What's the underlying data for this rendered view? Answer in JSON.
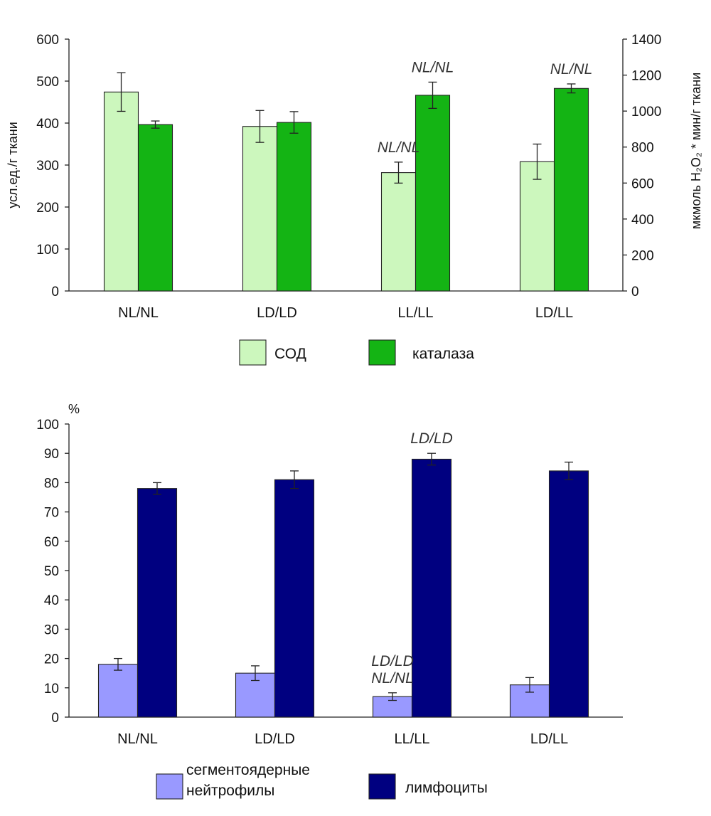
{
  "chart_data": [
    {
      "type": "bar",
      "categories": [
        "NL/NL",
        "LD/LD",
        "LL/LL",
        "LD/LL"
      ],
      "series": [
        {
          "name": "СОД",
          "axis": "left",
          "color": "#ccf7bd",
          "values": [
            474,
            392,
            282,
            308
          ],
          "errors": [
            46,
            38,
            25,
            42
          ]
        },
        {
          "name": "каталаза",
          "axis": "right",
          "color": "#14b414",
          "values": [
            925,
            937,
            1088,
            1126
          ],
          "errors": [
            20,
            60,
            73,
            25
          ]
        }
      ],
      "ylabel": "усл.ед./г ткани",
      "ylabel_right": "мкмоль H₂O₂ * мин/г ткани",
      "ylim": [
        0,
        600
      ],
      "ylim_right": [
        0,
        1400
      ],
      "yticks": [
        "0",
        "100",
        "200",
        "300",
        "400",
        "500",
        "600"
      ],
      "yticks_right": [
        "0",
        "200",
        "400",
        "600",
        "800",
        "1000",
        "1200",
        "1400"
      ],
      "annotations": [
        {
          "category": "LL/LL",
          "series": "СОД",
          "lines": [
            "NL/NL"
          ]
        },
        {
          "category": "LL/LL",
          "series": "каталаза",
          "lines": [
            "NL/NL"
          ]
        },
        {
          "category": "LD/LL",
          "series": "каталаза",
          "lines": [
            "NL/NL"
          ]
        }
      ],
      "legend": "bottom"
    },
    {
      "type": "bar",
      "categories": [
        "NL/NL",
        "LD/LD",
        "LL/LL",
        "LD/LL"
      ],
      "series": [
        {
          "name": "сегментоядерные нейтрофилы",
          "name_lines": [
            "сегментоядерные",
            "нейтрофилы"
          ],
          "color": "#9999ff",
          "values": [
            18,
            15,
            7,
            11
          ],
          "errors": [
            2,
            2.5,
            1.3,
            2.5
          ]
        },
        {
          "name": "лимфоциты",
          "color": "#000080",
          "values": [
            78,
            81,
            88,
            84
          ],
          "errors": [
            2,
            3,
            2,
            3
          ]
        }
      ],
      "ylabel": "%",
      "ylim": [
        0,
        100
      ],
      "yticks": [
        "0",
        "10",
        "20",
        "30",
        "40",
        "50",
        "60",
        "70",
        "80",
        "90",
        "100"
      ],
      "annotations": [
        {
          "category": "LL/LL",
          "series": "сегментоядерные нейтрофилы",
          "lines": [
            "LD/LD",
            "NL/NL"
          ]
        },
        {
          "category": "LL/LL",
          "series": "лимфоциты",
          "lines": [
            "LD/LD"
          ]
        }
      ],
      "legend": "bottom"
    }
  ]
}
